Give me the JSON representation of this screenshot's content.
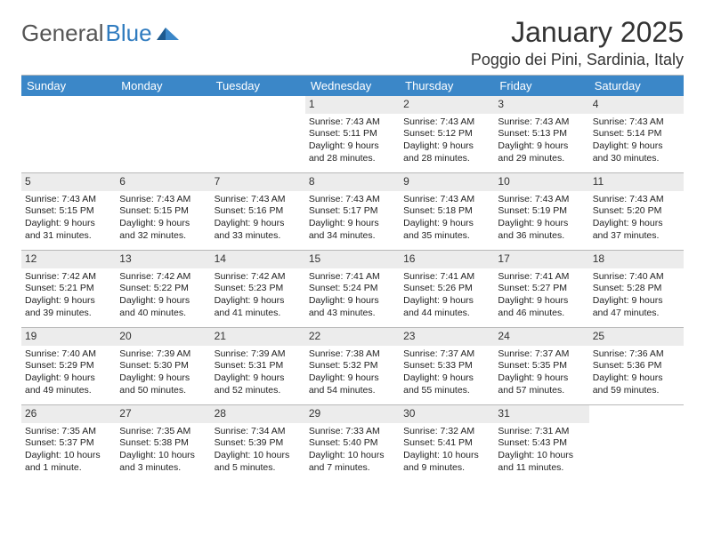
{
  "logo": {
    "left": "General",
    "right": "Blue"
  },
  "header": {
    "title": "January 2025",
    "location": "Poggio dei Pini, Sardinia, Italy"
  },
  "colors": {
    "header_bg": "#3b87c8",
    "header_fg": "#ffffff",
    "daynum_bg": "#ececec",
    "divider": "#b8b8b8",
    "logo_blue": "#2f7bbf"
  },
  "days": [
    "Sunday",
    "Monday",
    "Tuesday",
    "Wednesday",
    "Thursday",
    "Friday",
    "Saturday"
  ],
  "weeks": [
    [
      {
        "n": "",
        "sr": "",
        "ss": "",
        "dl": ""
      },
      {
        "n": "",
        "sr": "",
        "ss": "",
        "dl": ""
      },
      {
        "n": "",
        "sr": "",
        "ss": "",
        "dl": ""
      },
      {
        "n": "1",
        "sr": "Sunrise: 7:43 AM",
        "ss": "Sunset: 5:11 PM",
        "dl": "Daylight: 9 hours and 28 minutes."
      },
      {
        "n": "2",
        "sr": "Sunrise: 7:43 AM",
        "ss": "Sunset: 5:12 PM",
        "dl": "Daylight: 9 hours and 28 minutes."
      },
      {
        "n": "3",
        "sr": "Sunrise: 7:43 AM",
        "ss": "Sunset: 5:13 PM",
        "dl": "Daylight: 9 hours and 29 minutes."
      },
      {
        "n": "4",
        "sr": "Sunrise: 7:43 AM",
        "ss": "Sunset: 5:14 PM",
        "dl": "Daylight: 9 hours and 30 minutes."
      }
    ],
    [
      {
        "n": "5",
        "sr": "Sunrise: 7:43 AM",
        "ss": "Sunset: 5:15 PM",
        "dl": "Daylight: 9 hours and 31 minutes."
      },
      {
        "n": "6",
        "sr": "Sunrise: 7:43 AM",
        "ss": "Sunset: 5:15 PM",
        "dl": "Daylight: 9 hours and 32 minutes."
      },
      {
        "n": "7",
        "sr": "Sunrise: 7:43 AM",
        "ss": "Sunset: 5:16 PM",
        "dl": "Daylight: 9 hours and 33 minutes."
      },
      {
        "n": "8",
        "sr": "Sunrise: 7:43 AM",
        "ss": "Sunset: 5:17 PM",
        "dl": "Daylight: 9 hours and 34 minutes."
      },
      {
        "n": "9",
        "sr": "Sunrise: 7:43 AM",
        "ss": "Sunset: 5:18 PM",
        "dl": "Daylight: 9 hours and 35 minutes."
      },
      {
        "n": "10",
        "sr": "Sunrise: 7:43 AM",
        "ss": "Sunset: 5:19 PM",
        "dl": "Daylight: 9 hours and 36 minutes."
      },
      {
        "n": "11",
        "sr": "Sunrise: 7:43 AM",
        "ss": "Sunset: 5:20 PM",
        "dl": "Daylight: 9 hours and 37 minutes."
      }
    ],
    [
      {
        "n": "12",
        "sr": "Sunrise: 7:42 AM",
        "ss": "Sunset: 5:21 PM",
        "dl": "Daylight: 9 hours and 39 minutes."
      },
      {
        "n": "13",
        "sr": "Sunrise: 7:42 AM",
        "ss": "Sunset: 5:22 PM",
        "dl": "Daylight: 9 hours and 40 minutes."
      },
      {
        "n": "14",
        "sr": "Sunrise: 7:42 AM",
        "ss": "Sunset: 5:23 PM",
        "dl": "Daylight: 9 hours and 41 minutes."
      },
      {
        "n": "15",
        "sr": "Sunrise: 7:41 AM",
        "ss": "Sunset: 5:24 PM",
        "dl": "Daylight: 9 hours and 43 minutes."
      },
      {
        "n": "16",
        "sr": "Sunrise: 7:41 AM",
        "ss": "Sunset: 5:26 PM",
        "dl": "Daylight: 9 hours and 44 minutes."
      },
      {
        "n": "17",
        "sr": "Sunrise: 7:41 AM",
        "ss": "Sunset: 5:27 PM",
        "dl": "Daylight: 9 hours and 46 minutes."
      },
      {
        "n": "18",
        "sr": "Sunrise: 7:40 AM",
        "ss": "Sunset: 5:28 PM",
        "dl": "Daylight: 9 hours and 47 minutes."
      }
    ],
    [
      {
        "n": "19",
        "sr": "Sunrise: 7:40 AM",
        "ss": "Sunset: 5:29 PM",
        "dl": "Daylight: 9 hours and 49 minutes."
      },
      {
        "n": "20",
        "sr": "Sunrise: 7:39 AM",
        "ss": "Sunset: 5:30 PM",
        "dl": "Daylight: 9 hours and 50 minutes."
      },
      {
        "n": "21",
        "sr": "Sunrise: 7:39 AM",
        "ss": "Sunset: 5:31 PM",
        "dl": "Daylight: 9 hours and 52 minutes."
      },
      {
        "n": "22",
        "sr": "Sunrise: 7:38 AM",
        "ss": "Sunset: 5:32 PM",
        "dl": "Daylight: 9 hours and 54 minutes."
      },
      {
        "n": "23",
        "sr": "Sunrise: 7:37 AM",
        "ss": "Sunset: 5:33 PM",
        "dl": "Daylight: 9 hours and 55 minutes."
      },
      {
        "n": "24",
        "sr": "Sunrise: 7:37 AM",
        "ss": "Sunset: 5:35 PM",
        "dl": "Daylight: 9 hours and 57 minutes."
      },
      {
        "n": "25",
        "sr": "Sunrise: 7:36 AM",
        "ss": "Sunset: 5:36 PM",
        "dl": "Daylight: 9 hours and 59 minutes."
      }
    ],
    [
      {
        "n": "26",
        "sr": "Sunrise: 7:35 AM",
        "ss": "Sunset: 5:37 PM",
        "dl": "Daylight: 10 hours and 1 minute."
      },
      {
        "n": "27",
        "sr": "Sunrise: 7:35 AM",
        "ss": "Sunset: 5:38 PM",
        "dl": "Daylight: 10 hours and 3 minutes."
      },
      {
        "n": "28",
        "sr": "Sunrise: 7:34 AM",
        "ss": "Sunset: 5:39 PM",
        "dl": "Daylight: 10 hours and 5 minutes."
      },
      {
        "n": "29",
        "sr": "Sunrise: 7:33 AM",
        "ss": "Sunset: 5:40 PM",
        "dl": "Daylight: 10 hours and 7 minutes."
      },
      {
        "n": "30",
        "sr": "Sunrise: 7:32 AM",
        "ss": "Sunset: 5:41 PM",
        "dl": "Daylight: 10 hours and 9 minutes."
      },
      {
        "n": "31",
        "sr": "Sunrise: 7:31 AM",
        "ss": "Sunset: 5:43 PM",
        "dl": "Daylight: 10 hours and 11 minutes."
      },
      {
        "n": "",
        "sr": "",
        "ss": "",
        "dl": ""
      }
    ]
  ]
}
